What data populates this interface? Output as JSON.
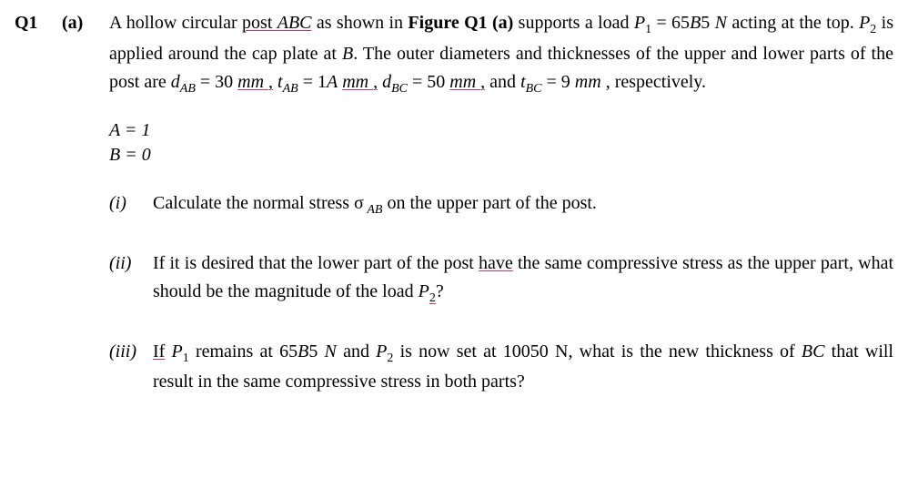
{
  "label_q": "Q1",
  "label_sub": "(a)",
  "intro": {
    "seg1": "A hollow circular ",
    "post_abc": "post ",
    "post_abc_italic": "ABC",
    "seg2": " as shown in ",
    "fig": "Figure Q1 (a)",
    "seg3": " supports a load ",
    "p1": "P",
    "p1_sub": "1",
    "seg4": " = 65",
    "b5": "B",
    "seg4b": "5 ",
    "n": "N",
    "seg5": " acting at the top.  ",
    "p2": "P",
    "p2_sub": "2",
    "seg6": " is applied around the cap plate at ",
    "b_point": "B",
    "seg7": ". The outer diameters and thicknesses of the upper and lower parts of the post are  ",
    "dab": "d",
    "dab_sub": "AB",
    "seg8": " = 30 ",
    "mm1": "mm ",
    "comma1": ",",
    "seg8b": "  ",
    "tab": "t",
    "tab_sub": "AB",
    "seg9": " = 1",
    "a_var": "A",
    "seg9b": " ",
    "mm2": "mm ",
    "comma2": ",",
    "seg10": " ",
    "dbc": "d",
    "dbc_sub": "BC",
    "seg11": " = 50 ",
    "mm3": "mm ",
    "comma3": ",",
    "seg12": " and ",
    "tbc": "t",
    "tbc_sub": "BC",
    "seg13": " = 9 ",
    "mm4": "mm",
    "seg14": " , respectively."
  },
  "vars": {
    "a_line": "A = 1",
    "b_line": "B = 0"
  },
  "q1": {
    "num": "(i)",
    "seg1": "Calculate the normal stress σ",
    "sub": " AB",
    "seg2": "  on the upper part of the post."
  },
  "q2": {
    "num": "(ii)",
    "seg1": "If it is desired that the lower part of the post ",
    "have": "have",
    "seg2": " the same compressive stress as the upper part, what should be the magnitude of the load  ",
    "p2": "P",
    "p2_sub": "2",
    "seg3": "?"
  },
  "q3": {
    "num": "(iii)",
    "if": "If",
    "seg1": " ",
    "p1": "P",
    "p1_sub": "1",
    "seg2": " remains at 65",
    "b5": "B",
    "seg2b": "5 ",
    "n": "N",
    "seg3": "  and ",
    "p2": "P",
    "p2_sub": "2",
    "seg4": " is now set at 10050 N, what is the new thickness of ",
    "bc": "BC",
    "seg5": " that will result in the same compressive stress in both parts?"
  }
}
